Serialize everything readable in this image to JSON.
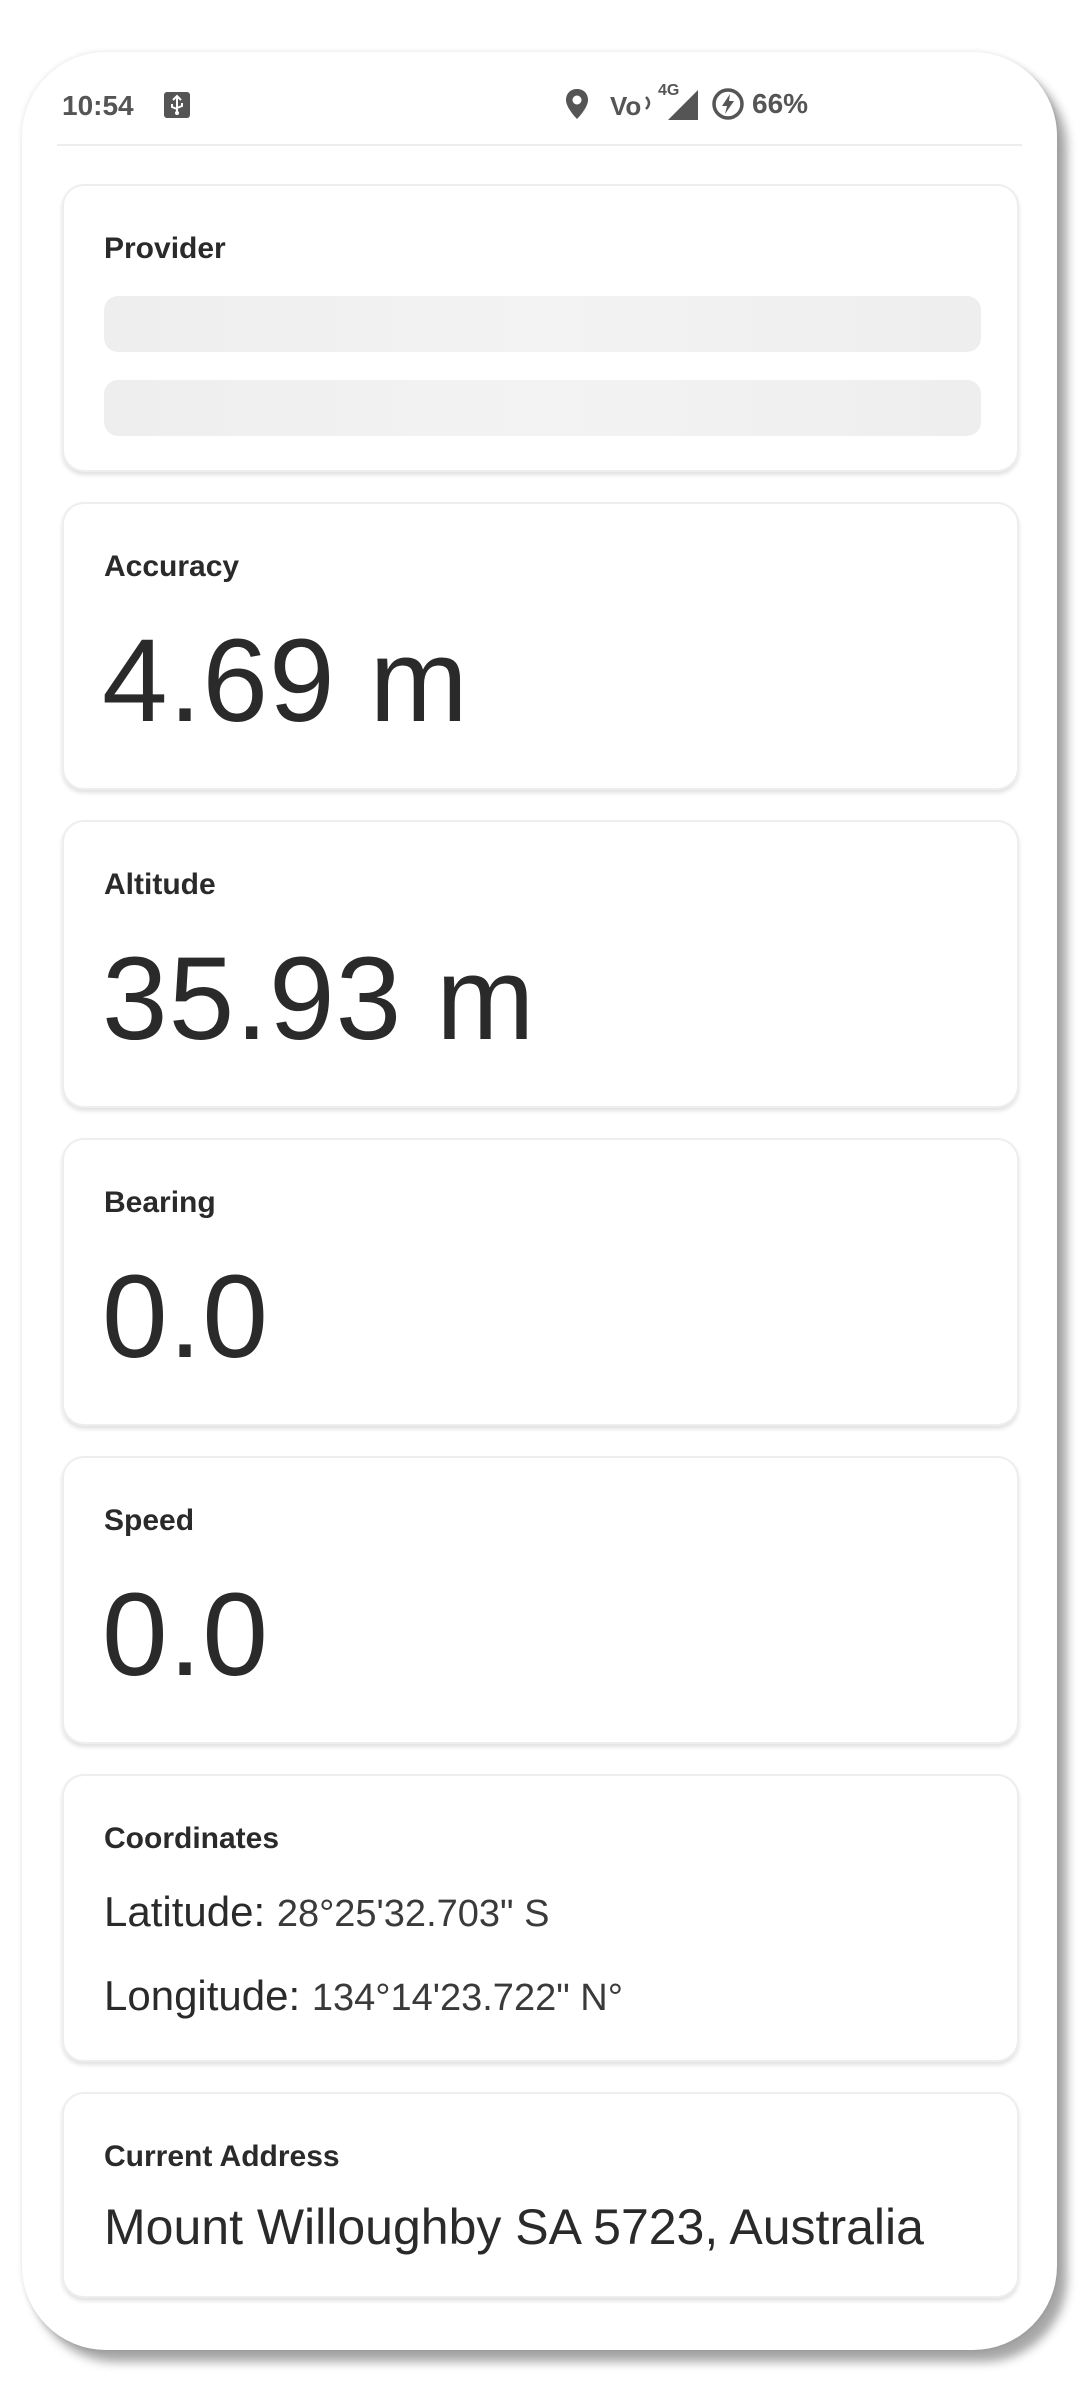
{
  "status_bar": {
    "time": "10:54",
    "battery": "66%",
    "network_label": "4G",
    "icons": [
      "usb-icon",
      "location-pin-icon",
      "volte-icon",
      "signal-icon",
      "battery-saver-icon"
    ]
  },
  "cards": {
    "provider": {
      "label": "Provider"
    },
    "accuracy": {
      "label": "Accuracy",
      "value": "4.69 m"
    },
    "altitude": {
      "label": "Altitude",
      "value": "35.93 m"
    },
    "bearing": {
      "label": "Bearing",
      "value": "0.0"
    },
    "speed": {
      "label": "Speed",
      "value": "0.0"
    },
    "coordinates": {
      "label": "Coordinates",
      "latitude_key": "Latitude:",
      "latitude_value": "28°25'32.703\" S",
      "longitude_key": "Longitude:",
      "longitude_value": "134°14'23.722\" N°"
    },
    "address": {
      "label": "Current Address",
      "value": "Mount Willoughby SA 5723, Australia"
    }
  },
  "colors": {
    "text": "#2a2a2a",
    "status_text": "#555555",
    "card_border": "#eeeeee",
    "skeleton": "#eeeeee"
  }
}
